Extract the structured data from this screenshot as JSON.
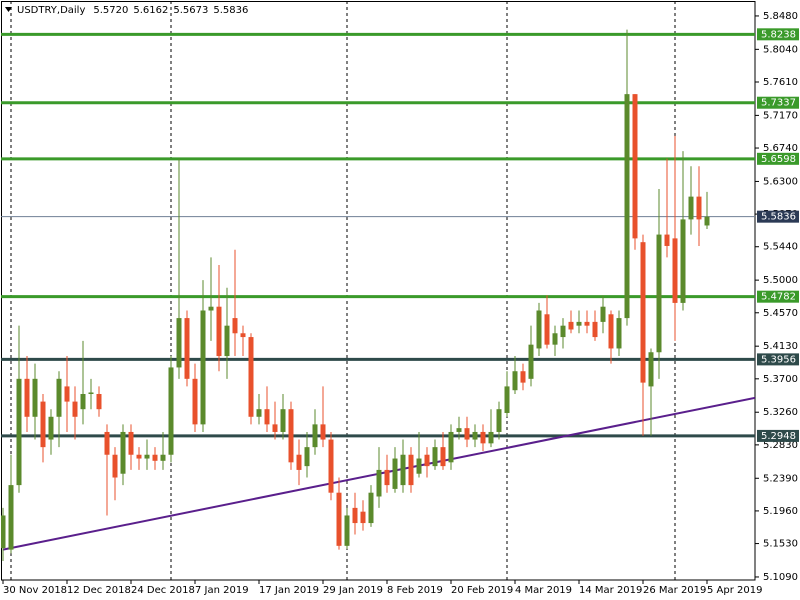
{
  "chart_data": {
    "type": "candlestick",
    "title": "USDTRY,Daily",
    "quote": [
      {
        "value": 5.572,
        "label": "5.5720"
      },
      {
        "value": 5.6162,
        "label": "5.6162"
      },
      {
        "value": 5.5673,
        "label": "5.5673"
      },
      {
        "value": 5.5836,
        "label": "5.5836"
      }
    ],
    "categories": [
      "30 Nov 2018",
      null,
      null,
      null,
      null,
      null,
      null,
      null,
      "12 Dec 2018",
      null,
      null,
      null,
      null,
      null,
      null,
      null,
      "24 Dec 2018",
      null,
      null,
      null,
      null,
      null,
      null,
      null,
      "7 Jan 2019",
      null,
      null,
      null,
      null,
      null,
      null,
      null,
      "17 Jan 2019",
      null,
      null,
      null,
      null,
      null,
      null,
      null,
      "29 Jan 2019",
      null,
      null,
      null,
      null,
      null,
      null,
      null,
      "8 Feb 2019",
      null,
      null,
      null,
      null,
      null,
      null,
      null,
      "20 Feb 2019",
      null,
      null,
      null,
      null,
      null,
      null,
      null,
      "4 Mar 2019",
      null,
      null,
      null,
      null,
      null,
      null,
      null,
      "14 Mar 2019",
      null,
      null,
      null,
      null,
      null,
      null,
      null,
      "26 Mar 2019",
      null,
      null,
      null,
      null,
      null,
      null,
      null,
      "5 Apr 2019"
    ],
    "open": [
      5.147,
      5.145,
      5.23,
      5.37,
      5.32,
      5.34,
      5.29,
      5.32,
      5.36,
      5.34,
      5.33,
      5.35,
      5.35,
      5.3,
      5.27,
      5.245,
      5.3,
      5.27,
      5.265,
      5.27,
      5.262,
      5.27,
      5.385,
      5.45,
      5.37,
      5.31,
      5.46,
      5.465,
      5.4,
      5.45,
      5.43,
      5.425,
      5.32,
      5.33,
      5.31,
      5.3,
      5.33,
      5.27,
      5.255,
      5.28,
      5.31,
      5.29,
      5.22,
      5.15,
      5.2,
      5.195,
      5.18,
      5.215,
      5.25,
      5.225,
      5.23,
      5.27,
      5.245,
      5.27,
      5.255,
      5.28,
      5.26,
      5.3,
      5.305,
      5.29,
      5.3,
      5.285,
      5.3,
      5.325,
      5.355,
      5.38,
      5.37,
      5.41,
      5.455,
      5.415,
      5.425,
      5.445,
      5.44,
      5.445,
      5.445,
      5.445,
      5.455,
      5.41,
      5.45,
      5.745,
      5.55,
      5.36,
      5.405,
      5.56,
      5.555,
      5.47,
      5.58,
      5.61,
      5.572
    ],
    "high": [
      5.2,
      5.27,
      5.44,
      5.4,
      5.39,
      5.35,
      5.33,
      5.38,
      5.4,
      5.36,
      5.42,
      5.37,
      5.36,
      5.31,
      5.28,
      5.31,
      5.31,
      5.28,
      5.29,
      5.28,
      5.3,
      5.4,
      5.66,
      5.46,
      5.39,
      5.5,
      5.53,
      5.52,
      5.49,
      5.54,
      5.44,
      5.43,
      5.35,
      5.36,
      5.34,
      5.35,
      5.34,
      5.29,
      5.3,
      5.33,
      5.36,
      5.3,
      5.24,
      5.2,
      5.22,
      5.21,
      5.23,
      5.28,
      5.27,
      5.28,
      5.29,
      5.28,
      5.3,
      5.28,
      5.29,
      5.3,
      5.31,
      5.32,
      5.32,
      5.31,
      5.31,
      5.33,
      5.34,
      5.38,
      5.4,
      5.39,
      5.44,
      5.47,
      5.48,
      5.44,
      5.45,
      5.46,
      5.46,
      5.46,
      5.46,
      5.48,
      5.46,
      5.46,
      5.83,
      5.745,
      5.56,
      5.41,
      5.62,
      5.66,
      5.69,
      5.67,
      5.65,
      5.65,
      5.6162
    ],
    "low": [
      5.13,
      5.14,
      5.22,
      5.3,
      5.29,
      5.26,
      5.27,
      5.28,
      5.3,
      5.29,
      5.31,
      5.33,
      5.32,
      5.19,
      5.21,
      5.23,
      5.25,
      5.25,
      5.25,
      5.25,
      5.25,
      5.26,
      5.37,
      5.36,
      5.3,
      5.3,
      5.42,
      5.38,
      5.37,
      5.4,
      5.4,
      5.31,
      5.31,
      5.3,
      5.29,
      5.29,
      5.25,
      5.23,
      5.24,
      5.27,
      5.28,
      5.21,
      5.145,
      5.146,
      5.165,
      5.17,
      5.175,
      5.2,
      5.22,
      5.22,
      5.22,
      5.22,
      5.24,
      5.24,
      5.25,
      5.25,
      5.25,
      5.29,
      5.28,
      5.28,
      5.275,
      5.28,
      5.29,
      5.32,
      5.35,
      5.355,
      5.36,
      5.4,
      5.41,
      5.4,
      5.41,
      5.43,
      5.43,
      5.43,
      5.42,
      5.43,
      5.39,
      5.4,
      5.44,
      5.54,
      5.295,
      5.295,
      5.37,
      5.53,
      5.42,
      5.46,
      5.56,
      5.545,
      5.5673
    ],
    "close": [
      5.19,
      5.23,
      5.37,
      5.32,
      5.37,
      5.28,
      5.32,
      5.37,
      5.34,
      5.32,
      5.35,
      5.352,
      5.33,
      5.27,
      5.24,
      5.3,
      5.27,
      5.265,
      5.27,
      5.262,
      5.27,
      5.385,
      5.45,
      5.37,
      5.31,
      5.46,
      5.465,
      5.4,
      5.44,
      5.43,
      5.425,
      5.32,
      5.33,
      5.31,
      5.3,
      5.33,
      5.26,
      5.25,
      5.28,
      5.31,
      5.29,
      5.22,
      5.15,
      5.19,
      5.18,
      5.18,
      5.22,
      5.25,
      5.23,
      5.265,
      5.27,
      5.23,
      5.265,
      5.255,
      5.28,
      5.255,
      5.3,
      5.305,
      5.29,
      5.3,
      5.285,
      5.3,
      5.33,
      5.36,
      5.38,
      5.365,
      5.415,
      5.46,
      5.415,
      5.43,
      5.44,
      5.435,
      5.445,
      5.44,
      5.425,
      5.465,
      5.41,
      5.45,
      5.745,
      5.555,
      5.365,
      5.405,
      5.56,
      5.545,
      5.47,
      5.58,
      5.61,
      5.58,
      5.5836
    ],
    "up_color": "#5b8a2c",
    "down_color": "#e8512c",
    "ylim": [
      5.105,
      5.869
    ],
    "yticks": [
      {
        "value": 5.848,
        "label": "5.8480"
      },
      {
        "value": 5.804,
        "label": "5.8040"
      },
      {
        "value": 5.761,
        "label": "5.7610"
      },
      {
        "value": 5.717,
        "label": "5.7170"
      },
      {
        "value": 5.674,
        "label": "5.6740"
      },
      {
        "value": 5.63,
        "label": "5.6300"
      },
      {
        "value": 5.587,
        "label": "5.5870"
      },
      {
        "value": 5.544,
        "label": "5.5440"
      },
      {
        "value": 5.5,
        "label": "5.5000"
      },
      {
        "value": 5.457,
        "label": "5.4570"
      },
      {
        "value": 5.413,
        "label": "5.4130"
      },
      {
        "value": 5.37,
        "label": "5.3700"
      },
      {
        "value": 5.326,
        "label": "5.3260"
      },
      {
        "value": 5.283,
        "label": "5.2830"
      },
      {
        "value": 5.239,
        "label": "5.2390"
      },
      {
        "value": 5.196,
        "label": "5.1960"
      },
      {
        "value": 5.153,
        "label": "5.1530"
      },
      {
        "value": 5.109,
        "label": "5.1090"
      }
    ],
    "levels": [
      {
        "value": 5.8238,
        "color": "#3a9a2a"
      },
      {
        "value": 5.7337,
        "color": "#3a9a2a"
      },
      {
        "value": 5.6598,
        "color": "#3a9a2a"
      },
      {
        "value": 5.4782,
        "color": "#3a9a2a"
      },
      {
        "value": 5.3956,
        "color": "#2e4a4a"
      },
      {
        "value": 5.2948,
        "color": "#2e4a4a"
      }
    ],
    "current": {
      "value": 5.5836,
      "color": "#6f7f95"
    },
    "trendline": {
      "values": [
        5.145,
        5.345
      ],
      "color": "#5a1f8c"
    }
  }
}
